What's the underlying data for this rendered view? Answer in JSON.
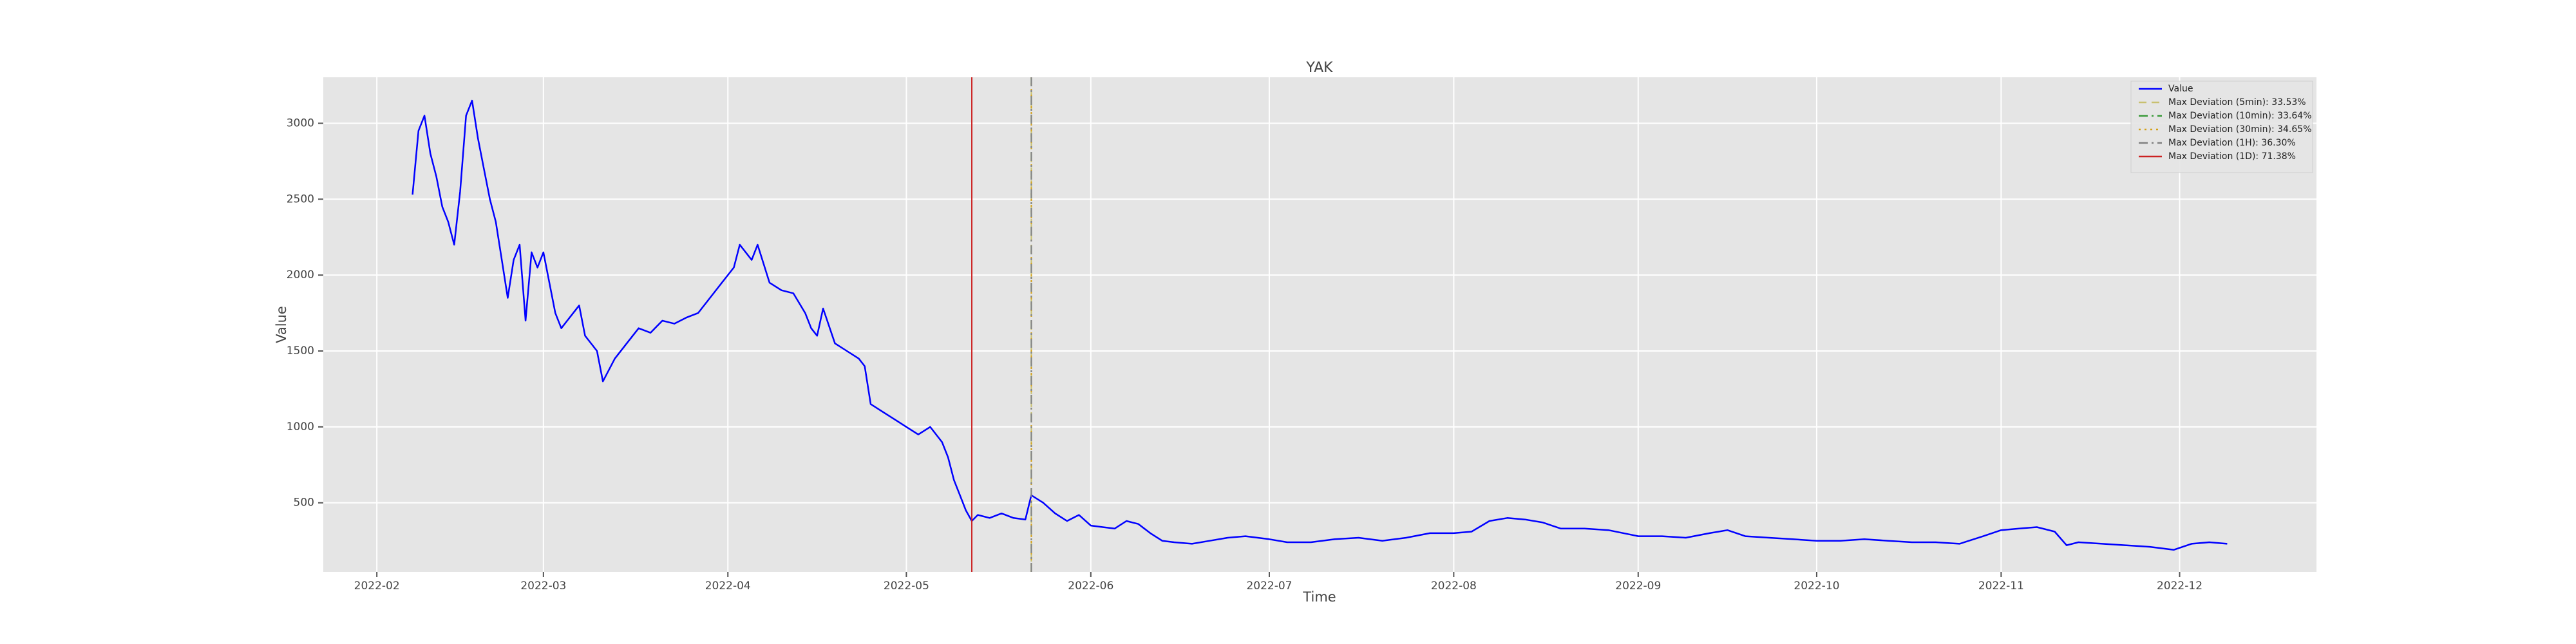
{
  "chart_data": {
    "type": "line",
    "title": "YAK",
    "xlabel": "Time",
    "ylabel": "Value",
    "x": [
      "2022-02-07",
      "2022-02-08",
      "2022-02-09",
      "2022-02-10",
      "2022-02-11",
      "2022-02-12",
      "2022-02-13",
      "2022-02-14",
      "2022-02-15",
      "2022-02-16",
      "2022-02-17",
      "2022-02-18",
      "2022-02-19",
      "2022-02-20",
      "2022-02-21",
      "2022-02-22",
      "2022-02-23",
      "2022-02-24",
      "2022-02-25",
      "2022-02-26",
      "2022-02-27",
      "2022-02-28",
      "2022-03-01",
      "2022-03-03",
      "2022-03-04",
      "2022-03-05",
      "2022-03-07",
      "2022-03-08",
      "2022-03-10",
      "2022-03-11",
      "2022-03-13",
      "2022-03-15",
      "2022-03-17",
      "2022-03-19",
      "2022-03-21",
      "2022-03-23",
      "2022-03-25",
      "2022-03-27",
      "2022-03-29",
      "2022-03-31",
      "2022-04-02",
      "2022-04-03",
      "2022-04-05",
      "2022-04-06",
      "2022-04-08",
      "2022-04-10",
      "2022-04-12",
      "2022-04-14",
      "2022-04-15",
      "2022-04-16",
      "2022-04-17",
      "2022-04-19",
      "2022-04-21",
      "2022-04-23",
      "2022-04-24",
      "2022-04-25",
      "2022-04-27",
      "2022-04-29",
      "2022-05-01",
      "2022-05-03",
      "2022-05-05",
      "2022-05-07",
      "2022-05-08",
      "2022-05-09",
      "2022-05-10",
      "2022-05-11",
      "2022-05-12",
      "2022-05-13",
      "2022-05-15",
      "2022-05-17",
      "2022-05-19",
      "2022-05-21",
      "2022-05-22",
      "2022-05-24",
      "2022-05-26",
      "2022-05-28",
      "2022-05-30",
      "2022-06-01",
      "2022-06-03",
      "2022-06-05",
      "2022-06-07",
      "2022-06-09",
      "2022-06-11",
      "2022-06-13",
      "2022-06-15",
      "2022-06-18",
      "2022-06-21",
      "2022-06-24",
      "2022-06-27",
      "2022-07-01",
      "2022-07-04",
      "2022-07-08",
      "2022-07-12",
      "2022-07-16",
      "2022-07-20",
      "2022-07-24",
      "2022-07-28",
      "2022-08-01",
      "2022-08-04",
      "2022-08-07",
      "2022-08-10",
      "2022-08-13",
      "2022-08-16",
      "2022-08-19",
      "2022-08-23",
      "2022-08-27",
      "2022-09-01",
      "2022-09-05",
      "2022-09-09",
      "2022-09-13",
      "2022-09-16",
      "2022-09-19",
      "2022-09-23",
      "2022-09-27",
      "2022-10-01",
      "2022-10-05",
      "2022-10-09",
      "2022-10-13",
      "2022-10-17",
      "2022-10-21",
      "2022-10-25",
      "2022-10-29",
      "2022-11-01",
      "2022-11-04",
      "2022-11-07",
      "2022-11-10",
      "2022-11-12",
      "2022-11-14",
      "2022-11-18",
      "2022-11-22",
      "2022-11-26",
      "2022-11-30",
      "2022-12-03",
      "2022-12-06",
      "2022-12-09"
    ],
    "series": [
      {
        "name": "Value",
        "color": "#0000ff",
        "values": [
          2530,
          2950,
          3050,
          2800,
          2650,
          2450,
          2350,
          2200,
          2550,
          3050,
          3150,
          2900,
          2700,
          2500,
          2350,
          2100,
          1850,
          2100,
          2200,
          1700,
          2150,
          2050,
          2150,
          1750,
          1650,
          1700,
          1800,
          1600,
          1500,
          1300,
          1450,
          1550,
          1650,
          1620,
          1700,
          1680,
          1720,
          1750,
          1850,
          1950,
          2050,
          2200,
          2100,
          2200,
          1950,
          1900,
          1880,
          1750,
          1650,
          1600,
          1780,
          1550,
          1500,
          1450,
          1400,
          1150,
          1100,
          1050,
          1000,
          950,
          1000,
          900,
          800,
          650,
          550,
          450,
          380,
          420,
          400,
          430,
          400,
          390,
          550,
          500,
          430,
          380,
          420,
          350,
          340,
          330,
          380,
          360,
          300,
          250,
          240,
          230,
          250,
          270,
          280,
          260,
          240,
          240,
          260,
          270,
          250,
          270,
          300,
          300,
          310,
          380,
          400,
          390,
          370,
          330,
          330,
          320,
          280,
          280,
          270,
          300,
          320,
          280,
          270,
          260,
          250,
          250,
          260,
          250,
          240,
          240,
          230,
          280,
          320,
          330,
          340,
          310,
          220,
          240,
          230,
          220,
          210,
          190,
          230,
          240,
          230
        ]
      }
    ],
    "vlines": [
      {
        "name": "Max Deviation (5min): 33.53%",
        "color": "#c8c070",
        "style": "dashed",
        "x": "2022-05-22"
      },
      {
        "name": "Max Deviation (10min): 33.64%",
        "color": "#3a9a3a",
        "style": "dashdot",
        "x": "2022-05-22"
      },
      {
        "name": "Max Deviation (30min): 34.65%",
        "color": "#d4a017",
        "style": "dotted",
        "x": "2022-05-22"
      },
      {
        "name": "Max Deviation (1H): 36.30%",
        "color": "#808080",
        "style": "dashdot",
        "x": "2022-05-22"
      },
      {
        "name": "Max Deviation (1D): 71.38%",
        "color": "#cc2222",
        "style": "solid",
        "x": "2022-05-12"
      }
    ],
    "xlim": [
      "2022-01-23",
      "2022-12-24"
    ],
    "xticks": [
      "2022-02",
      "2022-03",
      "2022-04",
      "2022-05",
      "2022-06",
      "2022-07",
      "2022-08",
      "2022-09",
      "2022-10",
      "2022-11",
      "2022-12"
    ],
    "ylim": [
      45,
      3303
    ],
    "yticks": [
      500,
      1000,
      1500,
      2000,
      2500,
      3000
    ],
    "grid": true,
    "legend": "upper right"
  }
}
